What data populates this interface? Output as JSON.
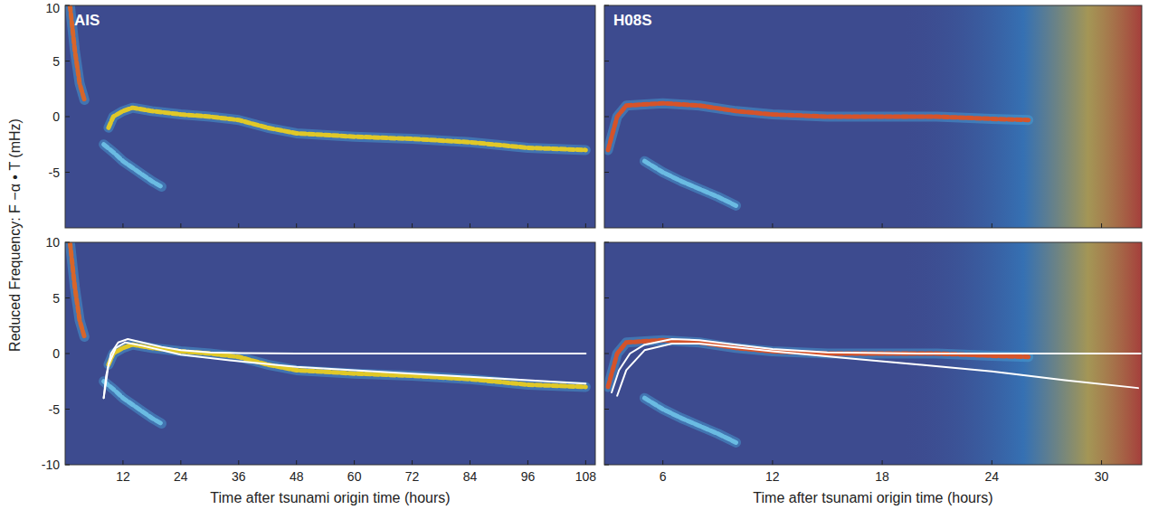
{
  "chart_data": [
    {
      "type": "line",
      "title": "AIS",
      "xlim": [
        0,
        110
      ],
      "ylim": [
        -10,
        10
      ],
      "xticks": [
        12,
        24,
        36,
        48,
        60,
        72,
        84,
        96,
        108
      ],
      "yticks": [
        10,
        5,
        0,
        -5
      ],
      "tick_labels": "y",
      "series": [
        {
          "color": "#f2d21a",
          "line_style": "band",
          "x": [
            9,
            10,
            12,
            14,
            18,
            24,
            30,
            36,
            42,
            48,
            60,
            72,
            84,
            96,
            108
          ],
          "values": [
            -1,
            0,
            0.5,
            0.8,
            0.5,
            0.2,
            0,
            -0.3,
            -1,
            -1.5,
            -1.8,
            -2,
            -2.3,
            -2.8,
            -3
          ]
        },
        {
          "color": "#6fc3e8",
          "line_style": "band",
          "x": [
            8,
            10,
            12,
            14,
            16,
            18,
            20
          ],
          "values": [
            -2.5,
            -3.2,
            -4,
            -4.6,
            -5.2,
            -5.8,
            -6.3
          ]
        },
        {
          "color": "#e8641c",
          "line_style": "band",
          "x": [
            1,
            2,
            3,
            4
          ],
          "values": [
            10,
            6,
            3,
            1.5
          ]
        }
      ]
    },
    {
      "type": "line",
      "title": "H08S",
      "xlim": [
        2.8,
        32.2
      ],
      "ylim": [
        -10,
        10
      ],
      "xticks": [
        6,
        12,
        18,
        24,
        30
      ],
      "yticks": [
        10,
        5,
        0,
        -5
      ],
      "tick_labels": false,
      "series": [
        {
          "color": "#e6501c",
          "line_style": "band",
          "x": [
            3,
            3.5,
            4,
            6,
            8,
            10,
            12,
            15,
            18,
            21,
            24,
            26
          ],
          "values": [
            -3,
            0,
            1,
            1.2,
            1,
            0.5,
            0.2,
            0,
            0,
            0,
            -0.2,
            -0.3
          ]
        },
        {
          "color": "#6fc3e8",
          "line_style": "band",
          "x": [
            5,
            6,
            7,
            8,
            9,
            10
          ],
          "values": [
            -4,
            -5,
            -5.8,
            -6.5,
            -7.2,
            -8
          ]
        }
      ]
    },
    {
      "type": "line",
      "xlabel": "Time after tsunami origin time (hours)",
      "ylabel": "Reduced Frequency: F −α • T (mHz)",
      "xlim": [
        0,
        110
      ],
      "ylim": [
        -10,
        10
      ],
      "xticks": [
        12,
        24,
        36,
        48,
        60,
        72,
        84,
        96,
        108
      ],
      "yticks": [
        10,
        5,
        0,
        -5,
        -10
      ],
      "tick_labels": true,
      "series": [
        {
          "color": "#f2d21a",
          "line_style": "band",
          "x": [
            9,
            10,
            12,
            14,
            18,
            24,
            30,
            36,
            42,
            48,
            60,
            72,
            84,
            96,
            108
          ],
          "values": [
            -1,
            0,
            0.5,
            0.8,
            0.5,
            0.2,
            0,
            -0.3,
            -1,
            -1.5,
            -1.8,
            -2,
            -2.3,
            -2.8,
            -3
          ]
        },
        {
          "color": "#6fc3e8",
          "line_style": "band",
          "x": [
            8,
            10,
            12,
            14,
            16,
            18,
            20
          ],
          "values": [
            -2.5,
            -3.2,
            -4,
            -4.6,
            -5.2,
            -5.8,
            -6.3
          ]
        },
        {
          "color": "#e8641c",
          "line_style": "band",
          "x": [
            1,
            2,
            3,
            4
          ],
          "values": [
            10,
            6,
            3,
            1.5
          ]
        },
        {
          "color": "#ffffff",
          "line_style": "solid",
          "x": [
            8,
            8.5,
            9.5,
            11,
            13,
            16,
            20,
            24,
            30,
            36,
            48,
            108
          ],
          "values": [
            -4,
            -2,
            0,
            1,
            1.3,
            1,
            0.6,
            0.3,
            0.1,
            0.05,
            0,
            0
          ]
        },
        {
          "color": "#ffffff",
          "line_style": "solid",
          "x": [
            8,
            9,
            10.5,
            12.5,
            16,
            24,
            36,
            48,
            60,
            72,
            84,
            96,
            108
          ],
          "values": [
            -4,
            -1,
            0.5,
            1,
            0.7,
            -0.1,
            -0.7,
            -1.2,
            -1.5,
            -1.8,
            -2.1,
            -2.4,
            -2.7
          ]
        }
      ]
    },
    {
      "type": "line",
      "xlabel": "Time after tsunami origin time (hours)",
      "xlim": [
        2.8,
        32.2
      ],
      "ylim": [
        -10,
        10
      ],
      "xticks": [
        6,
        12,
        18,
        24,
        30
      ],
      "yticks": [
        10,
        5,
        0,
        -5,
        -10
      ],
      "tick_labels": "x",
      "series": [
        {
          "color": "#e6501c",
          "line_style": "band",
          "x": [
            3,
            3.5,
            4,
            6,
            8,
            10,
            12,
            15,
            18,
            21,
            24,
            26
          ],
          "values": [
            -3,
            0,
            1,
            1.2,
            1,
            0.5,
            0.2,
            0,
            0,
            0,
            -0.2,
            -0.3
          ]
        },
        {
          "color": "#6fc3e8",
          "line_style": "band",
          "x": [
            5,
            6,
            7,
            8,
            9,
            10
          ],
          "values": [
            -4,
            -5,
            -5.8,
            -6.5,
            -7.2,
            -8
          ]
        },
        {
          "color": "#ffffff",
          "line_style": "solid",
          "x": [
            3.2,
            3.6,
            4.2,
            5,
            6.5,
            8,
            10,
            12,
            15,
            20,
            32.2
          ],
          "values": [
            -3.5,
            -1.5,
            0,
            0.8,
            1.3,
            1.2,
            0.8,
            0.4,
            0.1,
            0,
            0
          ]
        },
        {
          "color": "#ffffff",
          "line_style": "solid",
          "x": [
            3.5,
            4,
            5,
            6.5,
            8,
            12,
            16,
            20,
            24,
            28,
            32
          ],
          "values": [
            -3.8,
            -1.5,
            0.3,
            0.9,
            0.9,
            0.2,
            -0.4,
            -1,
            -1.6,
            -2.4,
            -3.1
          ]
        }
      ]
    }
  ]
}
